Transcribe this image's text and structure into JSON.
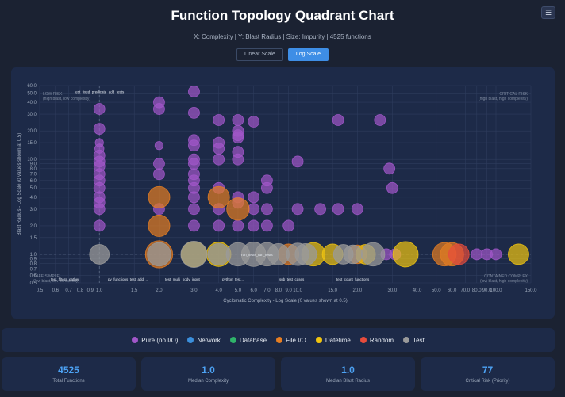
{
  "header": {
    "title": "Function Topology Quadrant Chart",
    "subtitle": "X: Complexity | Y: Blast Radius | Size: Impurity | 4525 functions",
    "menu_icon": "list-icon"
  },
  "scale_toggle": {
    "linear_label": "Linear Scale",
    "log_label": "Log Scale",
    "active": "log"
  },
  "chart_data": {
    "type": "scatter",
    "title": "Function Topology Quadrant Chart",
    "xlabel": "Cyclomatic Complexity - Log Scale (0 values shown at 0.5)",
    "ylabel": "Blast Radius - Log Scale (0 values shown at 0.5)",
    "xscale": "log",
    "yscale": "log",
    "xlim": [
      0.5,
      150
    ],
    "ylim": [
      0.5,
      60
    ],
    "x_ticks": [
      "0.5",
      "0.6",
      "0.7",
      "0.8",
      "0.9",
      "1.0",
      "1.5",
      "2.0",
      "3.0",
      "4.0",
      "5.0",
      "6.0",
      "7.0",
      "8.0",
      "9.0",
      "10.0",
      "15.0",
      "20.0",
      "30.0",
      "40.0",
      "50.0",
      "60.0",
      "70.0",
      "80.0",
      "90.0",
      "100.0",
      "150.0"
    ],
    "y_ticks": [
      "0.5",
      "0.6",
      "0.7",
      "0.8",
      "0.9",
      "1.0",
      "1.5",
      "2.0",
      "3.0",
      "4.0",
      "5.0",
      "6.0",
      "7.0",
      "8.0",
      "9.0",
      "10.0",
      "15.0",
      "20.0",
      "30.0",
      "40.0",
      "50.0",
      "60.0"
    ],
    "quadrants": [
      {
        "title": "LOW RISK",
        "desc": "(high blast, low complexity)",
        "position": "top-left"
      },
      {
        "title": "CRITICAL RISK",
        "desc": "(high blast, high complexity)",
        "position": "top-right"
      },
      {
        "title": "SAFE SIMPLE",
        "desc": "(low blast, low complexity)",
        "position": "bottom-left"
      },
      {
        "title": "CONTAINED COMPLEX",
        "desc": "(low blast, high complexity)",
        "position": "bottom-right"
      }
    ],
    "thresholds": {
      "x": 1.0,
      "y": 1.0
    },
    "annotations": [
      {
        "text": "test_fixed_predicate_add_tests",
        "x": 0.75,
        "y": 52
      },
      {
        "text": "run_tests_run_tests",
        "x": 5.2,
        "y": 1.0
      }
    ],
    "categories": [
      {
        "key": "pure",
        "name": "Pure (no I/O)",
        "color": "#a157c9"
      },
      {
        "key": "network",
        "name": "Network",
        "color": "#3b8fdc"
      },
      {
        "key": "database",
        "name": "Database",
        "color": "#2fb36a"
      },
      {
        "key": "fileio",
        "name": "File I/O",
        "color": "#e67e22"
      },
      {
        "key": "datetime",
        "name": "Datetime",
        "color": "#f1c40f"
      },
      {
        "key": "random",
        "name": "Random",
        "color": "#e74c3c"
      },
      {
        "key": "test",
        "name": "Test",
        "color": "#9a9a9a"
      }
    ],
    "series": [
      {
        "name": "Pure (no I/O)",
        "key": "pure",
        "points": [
          [
            1,
            34,
            0.5
          ],
          [
            1,
            21,
            0.5
          ],
          [
            1,
            15,
            0.2
          ],
          [
            1,
            13,
            0.3
          ],
          [
            1,
            11,
            0.5
          ],
          [
            1,
            9.5,
            0.5
          ],
          [
            1,
            8.5,
            0.5
          ],
          [
            1,
            7,
            0.5
          ],
          [
            1,
            6,
            0.5
          ],
          [
            1,
            5,
            0.5
          ],
          [
            1,
            4,
            0.5
          ],
          [
            1,
            3.5,
            0.5
          ],
          [
            1,
            3,
            0.5
          ],
          [
            1,
            2,
            0.5
          ],
          [
            2,
            40,
            0.5
          ],
          [
            2,
            34,
            0.5
          ],
          [
            2,
            14,
            0.2
          ],
          [
            2,
            9,
            0.5
          ],
          [
            2,
            7,
            0.5
          ],
          [
            2,
            3,
            0.5
          ],
          [
            3,
            52,
            0.5
          ],
          [
            3,
            31,
            0.5
          ],
          [
            3,
            16,
            0.5
          ],
          [
            3,
            14,
            0.5
          ],
          [
            3,
            10,
            0.5
          ],
          [
            3,
            9,
            0.5
          ],
          [
            3,
            7,
            0.5
          ],
          [
            3,
            6,
            0.5
          ],
          [
            3,
            5,
            0.5
          ],
          [
            3,
            4,
            0.5
          ],
          [
            3,
            3,
            0.5
          ],
          [
            3,
            2,
            0.5
          ],
          [
            4,
            26,
            0.5
          ],
          [
            4,
            15,
            0.5
          ],
          [
            4,
            13,
            0.5
          ],
          [
            4,
            10,
            0.5
          ],
          [
            4,
            5,
            0.5
          ],
          [
            4,
            3,
            0.5
          ],
          [
            4,
            2,
            0.5
          ],
          [
            5,
            26,
            0.5
          ],
          [
            5,
            20,
            0.5
          ],
          [
            5,
            18,
            0.5
          ],
          [
            5,
            17,
            0.5
          ],
          [
            5,
            12,
            0.5
          ],
          [
            5,
            10,
            0.5
          ],
          [
            5,
            4,
            0.5
          ],
          [
            5,
            3.5,
            0.5
          ],
          [
            5,
            2,
            0.5
          ],
          [
            6,
            25,
            0.5
          ],
          [
            6,
            4,
            0.5
          ],
          [
            6,
            3,
            0.5
          ],
          [
            6,
            2,
            0.5
          ],
          [
            7,
            6,
            0.5
          ],
          [
            7,
            5,
            0.5
          ],
          [
            7,
            3,
            0.5
          ],
          [
            7,
            2,
            0.5
          ],
          [
            9,
            2,
            0.5
          ],
          [
            10,
            9.5,
            0.5
          ],
          [
            10,
            3,
            0.5
          ],
          [
            13,
            3,
            0.5
          ],
          [
            16,
            26,
            0.5
          ],
          [
            16,
            3,
            0.5
          ],
          [
            20,
            3,
            0.5
          ],
          [
            26,
            26,
            0.5
          ],
          [
            29,
            8,
            0.5
          ],
          [
            30,
            5,
            0.5
          ],
          [
            28,
            1,
            0.5
          ],
          [
            31,
            1,
            0.5
          ],
          [
            80,
            1,
            0.5
          ],
          [
            90,
            1,
            0.5
          ],
          [
            100,
            1,
            0.5
          ]
        ]
      },
      {
        "name": "File I/O",
        "key": "fileio",
        "points": [
          [
            2,
            4,
            1.6
          ],
          [
            2,
            2,
            1.6
          ],
          [
            2,
            1,
            2.2
          ],
          [
            4,
            4,
            1.6
          ],
          [
            5,
            3,
            1.7
          ],
          [
            9,
            1,
            1.5
          ],
          [
            55,
            1,
            1.8
          ],
          [
            60,
            1,
            1.8
          ],
          [
            20,
            1,
            1.3
          ]
        ]
      },
      {
        "name": "Datetime",
        "key": "datetime",
        "points": [
          [
            3,
            1,
            2.0
          ],
          [
            4,
            1,
            1.9
          ],
          [
            12,
            1,
            1.8
          ],
          [
            15,
            1,
            1.5
          ],
          [
            22,
            1,
            1.4
          ],
          [
            35,
            1,
            2.0
          ],
          [
            130,
            1,
            1.5
          ]
        ]
      },
      {
        "name": "Random",
        "key": "random",
        "points": [
          [
            65,
            1,
            1.5
          ]
        ]
      },
      {
        "name": "Test",
        "key": "test",
        "points": [
          [
            1,
            1,
            1.4
          ],
          [
            2,
            1,
            1.8
          ],
          [
            3,
            1,
            2.1
          ],
          [
            4,
            1,
            1.6
          ],
          [
            5,
            1,
            1.8
          ],
          [
            6,
            1,
            1.9
          ],
          [
            7,
            1,
            1.8
          ],
          [
            8,
            1,
            1.6
          ],
          [
            10,
            1,
            1.7
          ],
          [
            11,
            1,
            1.6
          ],
          [
            17,
            1,
            1.4
          ],
          [
            19,
            1,
            1.3
          ],
          [
            24,
            1,
            1.8
          ]
        ]
      }
    ],
    "x_zero_labels": [
      "test_filters_gather",
      "py_functions_test_add_...",
      "test_multi_body_input",
      "python_test...",
      "sub_test_cases",
      "test_count_functions"
    ],
    "legend_position": "bottom",
    "grid": true
  },
  "legend": [
    {
      "label": "Pure (no I/O)",
      "color": "#a157c9"
    },
    {
      "label": "Network",
      "color": "#3b8fdc"
    },
    {
      "label": "Database",
      "color": "#2fb36a"
    },
    {
      "label": "File I/O",
      "color": "#e67e22"
    },
    {
      "label": "Datetime",
      "color": "#f1c40f"
    },
    {
      "label": "Random",
      "color": "#e74c3c"
    },
    {
      "label": "Test",
      "color": "#9a9a9a"
    }
  ],
  "stats": [
    {
      "value": "4525",
      "label": "Total Functions"
    },
    {
      "value": "1.0",
      "label": "Median Complexity"
    },
    {
      "value": "1.0",
      "label": "Median Blast Radius"
    },
    {
      "value": "77",
      "label": "Critical Risk (Priority)"
    }
  ]
}
